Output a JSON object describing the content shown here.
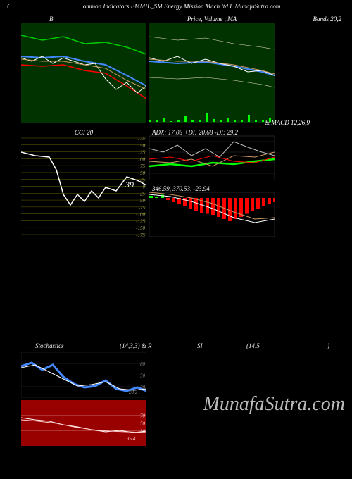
{
  "header": {
    "left": "C",
    "main": "ommon Indicators EMMIL_SM Energy Mission  Mach ltd I. MunafaSutra.com"
  },
  "watermark": "MunafaSutra.com",
  "panels": {
    "bb": {
      "title_left": "B",
      "title_right": "Bands 20,2",
      "width": 178,
      "height": 155,
      "bg": "#003300",
      "lines": {
        "upper": {
          "color": "#00cc00",
          "w": 1.5,
          "pts": [
            [
              0,
              18
            ],
            [
              30,
              25
            ],
            [
              60,
              20
            ],
            [
              90,
              30
            ],
            [
              120,
              28
            ],
            [
              150,
              35
            ],
            [
              178,
              45
            ]
          ]
        },
        "mid": {
          "color": "#4488ff",
          "w": 2,
          "pts": [
            [
              0,
              48
            ],
            [
              30,
              50
            ],
            [
              60,
              48
            ],
            [
              90,
              55
            ],
            [
              120,
              60
            ],
            [
              150,
              75
            ],
            [
              178,
              90
            ]
          ]
        },
        "lower": {
          "color": "#ff0000",
          "w": 1.5,
          "pts": [
            [
              0,
              60
            ],
            [
              30,
              62
            ],
            [
              60,
              60
            ],
            [
              90,
              68
            ],
            [
              120,
              72
            ],
            [
              150,
              90
            ],
            [
              178,
              108
            ]
          ]
        },
        "price": {
          "color": "#ffffff",
          "w": 1,
          "pts": [
            [
              0,
              50
            ],
            [
              15,
              55
            ],
            [
              30,
              48
            ],
            [
              45,
              58
            ],
            [
              60,
              50
            ],
            [
              75,
              55
            ],
            [
              90,
              60
            ],
            [
              105,
              58
            ],
            [
              120,
              80
            ],
            [
              135,
              95
            ],
            [
              150,
              85
            ],
            [
              165,
              100
            ],
            [
              178,
              90
            ]
          ]
        },
        "ma": {
          "color": "#cc9966",
          "w": 1,
          "pts": [
            [
              0,
              52
            ],
            [
              30,
              55
            ],
            [
              60,
              55
            ],
            [
              90,
              60
            ],
            [
              120,
              65
            ],
            [
              150,
              82
            ],
            [
              178,
              95
            ]
          ]
        }
      }
    },
    "price": {
      "title": "Price,  Volume , MA",
      "width": 178,
      "height": 155,
      "bg": "#003300",
      "lines": {
        "upper": {
          "color": "#eeddcc",
          "w": 0.6,
          "pts": [
            [
              0,
              20
            ],
            [
              40,
              25
            ],
            [
              80,
              22
            ],
            [
              120,
              30
            ],
            [
              160,
              35
            ],
            [
              178,
              38
            ]
          ]
        },
        "mid": {
          "color": "#4488ff",
          "w": 2,
          "pts": [
            [
              0,
              55
            ],
            [
              40,
              58
            ],
            [
              80,
              56
            ],
            [
              120,
              62
            ],
            [
              160,
              70
            ],
            [
              178,
              75
            ]
          ]
        },
        "lower": {
          "color": "#eeddcc",
          "w": 0.6,
          "pts": [
            [
              0,
              78
            ],
            [
              40,
              80
            ],
            [
              80,
              78
            ],
            [
              120,
              82
            ],
            [
              160,
              88
            ],
            [
              178,
              92
            ]
          ]
        },
        "price": {
          "color": "#ffffff",
          "w": 1,
          "pts": [
            [
              0,
              50
            ],
            [
              20,
              55
            ],
            [
              40,
              48
            ],
            [
              60,
              58
            ],
            [
              80,
              52
            ],
            [
              100,
              58
            ],
            [
              120,
              62
            ],
            [
              140,
              70
            ],
            [
              160,
              68
            ],
            [
              178,
              75
            ]
          ]
        },
        "ma1": {
          "color": "#cc9966",
          "w": 1,
          "pts": [
            [
              0,
              52
            ],
            [
              40,
              55
            ],
            [
              80,
              55
            ],
            [
              120,
              60
            ],
            [
              160,
              68
            ],
            [
              178,
              73
            ]
          ]
        }
      },
      "volume": {
        "color": "#00ff00",
        "bars": [
          [
            0,
            3
          ],
          [
            10,
            2
          ],
          [
            20,
            5
          ],
          [
            30,
            1
          ],
          [
            40,
            2
          ],
          [
            50,
            8
          ],
          [
            60,
            3
          ],
          [
            70,
            2
          ],
          [
            80,
            12
          ],
          [
            90,
            4
          ],
          [
            100,
            2
          ],
          [
            110,
            6
          ],
          [
            120,
            3
          ],
          [
            130,
            2
          ],
          [
            140,
            10
          ],
          [
            150,
            3
          ],
          [
            160,
            2
          ],
          [
            170,
            5
          ]
        ]
      }
    },
    "cci": {
      "title": "CCI 20",
      "width": 178,
      "height": 155,
      "bg": "#000000",
      "grid_color": "#666600",
      "ticks": [
        175,
        150,
        125,
        100,
        75,
        50,
        25,
        0,
        -25,
        -50,
        -75,
        -100,
        -125,
        -150,
        -175
      ],
      "value_label": "39",
      "line": {
        "color": "#ffffff",
        "w": 1.5,
        "pts": [
          [
            0,
            35
          ],
          [
            20,
            40
          ],
          [
            40,
            42
          ],
          [
            50,
            60
          ],
          [
            60,
            95
          ],
          [
            70,
            110
          ],
          [
            80,
            95
          ],
          [
            90,
            105
          ],
          [
            100,
            90
          ],
          [
            110,
            100
          ],
          [
            120,
            85
          ],
          [
            135,
            90
          ],
          [
            150,
            70
          ],
          [
            165,
            75
          ],
          [
            178,
            82
          ]
        ]
      }
    },
    "adx": {
      "title": "ADX:  17.08   +DI:  20.68  -DI:  29.2",
      "subtitle": "& MACD 12,26,9",
      "width": 178,
      "height": 75,
      "bg": "#000000",
      "grid_color": "#333333",
      "lines": {
        "adx": {
          "color": "#00ff00",
          "w": 2.5,
          "pts": [
            [
              0,
              55
            ],
            [
              30,
              52
            ],
            [
              60,
              55
            ],
            [
              90,
              50
            ],
            [
              120,
              52
            ],
            [
              150,
              48
            ],
            [
              178,
              45
            ]
          ]
        },
        "pdi": {
          "color": "#cc9966",
          "w": 1,
          "pts": [
            [
              0,
              48
            ],
            [
              30,
              50
            ],
            [
              60,
              45
            ],
            [
              90,
              55
            ],
            [
              120,
              40
            ],
            [
              150,
              42
            ],
            [
              178,
              35
            ]
          ]
        },
        "mdi": {
          "color": "#ff0000",
          "w": 1,
          "pts": [
            [
              0,
              45
            ],
            [
              30,
              42
            ],
            [
              60,
              48
            ],
            [
              90,
              40
            ],
            [
              120,
              48
            ],
            [
              150,
              50
            ],
            [
              178,
              42
            ]
          ]
        },
        "ovl": {
          "color": "#bbbbbb",
          "w": 1,
          "pts": [
            [
              0,
              30
            ],
            [
              20,
              35
            ],
            [
              40,
              25
            ],
            [
              60,
              40
            ],
            [
              80,
              30
            ],
            [
              100,
              42
            ],
            [
              120,
              20
            ],
            [
              140,
              28
            ],
            [
              160,
              35
            ],
            [
              178,
              40
            ]
          ]
        }
      }
    },
    "macd": {
      "title": "346.59,  370.53,  -23.94",
      "width": 178,
      "height": 75,
      "bg": "#000000",
      "hist_colors": {
        "pos": "#00ff00",
        "neg": "#ff0000"
      },
      "hist": [
        [
          0,
          2
        ],
        [
          8,
          1
        ],
        [
          16,
          3
        ],
        [
          24,
          -2
        ],
        [
          32,
          -4
        ],
        [
          40,
          -6
        ],
        [
          48,
          -8
        ],
        [
          56,
          -10
        ],
        [
          64,
          -12
        ],
        [
          72,
          -14
        ],
        [
          80,
          -15
        ],
        [
          88,
          -16
        ],
        [
          96,
          -18
        ],
        [
          104,
          -20
        ],
        [
          112,
          -22
        ],
        [
          120,
          -20
        ],
        [
          128,
          -18
        ],
        [
          136,
          -15
        ],
        [
          144,
          -12
        ],
        [
          152,
          -10
        ],
        [
          160,
          -8
        ],
        [
          168,
          -6
        ],
        [
          176,
          -4
        ]
      ],
      "lines": {
        "macd": {
          "color": "#ffffff",
          "w": 1,
          "pts": [
            [
              0,
              15
            ],
            [
              30,
              18
            ],
            [
              60,
              25
            ],
            [
              90,
              35
            ],
            [
              120,
              48
            ],
            [
              150,
              55
            ],
            [
              178,
              50
            ]
          ]
        },
        "sig": {
          "color": "#cc9966",
          "w": 1,
          "pts": [
            [
              0,
              12
            ],
            [
              30,
              15
            ],
            [
              60,
              20
            ],
            [
              90,
              28
            ],
            [
              120,
              40
            ],
            [
              150,
              50
            ],
            [
              178,
              48
            ]
          ]
        }
      }
    },
    "stoch": {
      "title_left": "Stochastics",
      "title_right_a": "(14,3,3) & R",
      "title_right_b": "SI",
      "title_right_c": "(14,5",
      "title_right_d": ")",
      "width": 178,
      "height": 65,
      "bg": "#000000",
      "grid_color": "#333333",
      "ticks": [
        80,
        50,
        20
      ],
      "lines": {
        "k": {
          "color": "#4488ff",
          "w": 3,
          "pts": [
            [
              0,
              20
            ],
            [
              15,
              15
            ],
            [
              30,
              25
            ],
            [
              45,
              18
            ],
            [
              60,
              35
            ],
            [
              75,
              45
            ],
            [
              90,
              50
            ],
            [
              105,
              48
            ],
            [
              120,
              40
            ],
            [
              135,
              52
            ],
            [
              150,
              55
            ],
            [
              165,
              50
            ],
            [
              178,
              55
            ]
          ]
        },
        "d": {
          "color": "#ffffff",
          "w": 1,
          "pts": [
            [
              0,
              22
            ],
            [
              20,
              18
            ],
            [
              40,
              28
            ],
            [
              60,
              38
            ],
            [
              80,
              48
            ],
            [
              100,
              46
            ],
            [
              120,
              42
            ],
            [
              140,
              52
            ],
            [
              160,
              54
            ],
            [
              178,
              52
            ]
          ]
        }
      }
    },
    "rsi": {
      "width": 178,
      "height": 65,
      "bg": "#990000",
      "grid_color": "#cc6666",
      "ticks": [
        70,
        50,
        30
      ],
      "lines": {
        "r1": {
          "color": "#ffffff",
          "w": 1,
          "pts": [
            [
              0,
              25
            ],
            [
              20,
              28
            ],
            [
              40,
              30
            ],
            [
              60,
              35
            ],
            [
              80,
              38
            ],
            [
              100,
              42
            ],
            [
              120,
              45
            ],
            [
              140,
              43
            ],
            [
              160,
              46
            ],
            [
              178,
              44
            ]
          ]
        },
        "r2": {
          "color": "#ffcccc",
          "w": 1,
          "pts": [
            [
              0,
              28
            ],
            [
              25,
              30
            ],
            [
              50,
              33
            ],
            [
              75,
              38
            ],
            [
              100,
              42
            ],
            [
              125,
              44
            ],
            [
              150,
              45
            ],
            [
              178,
              46
            ]
          ]
        }
      },
      "label": "35.4"
    }
  }
}
